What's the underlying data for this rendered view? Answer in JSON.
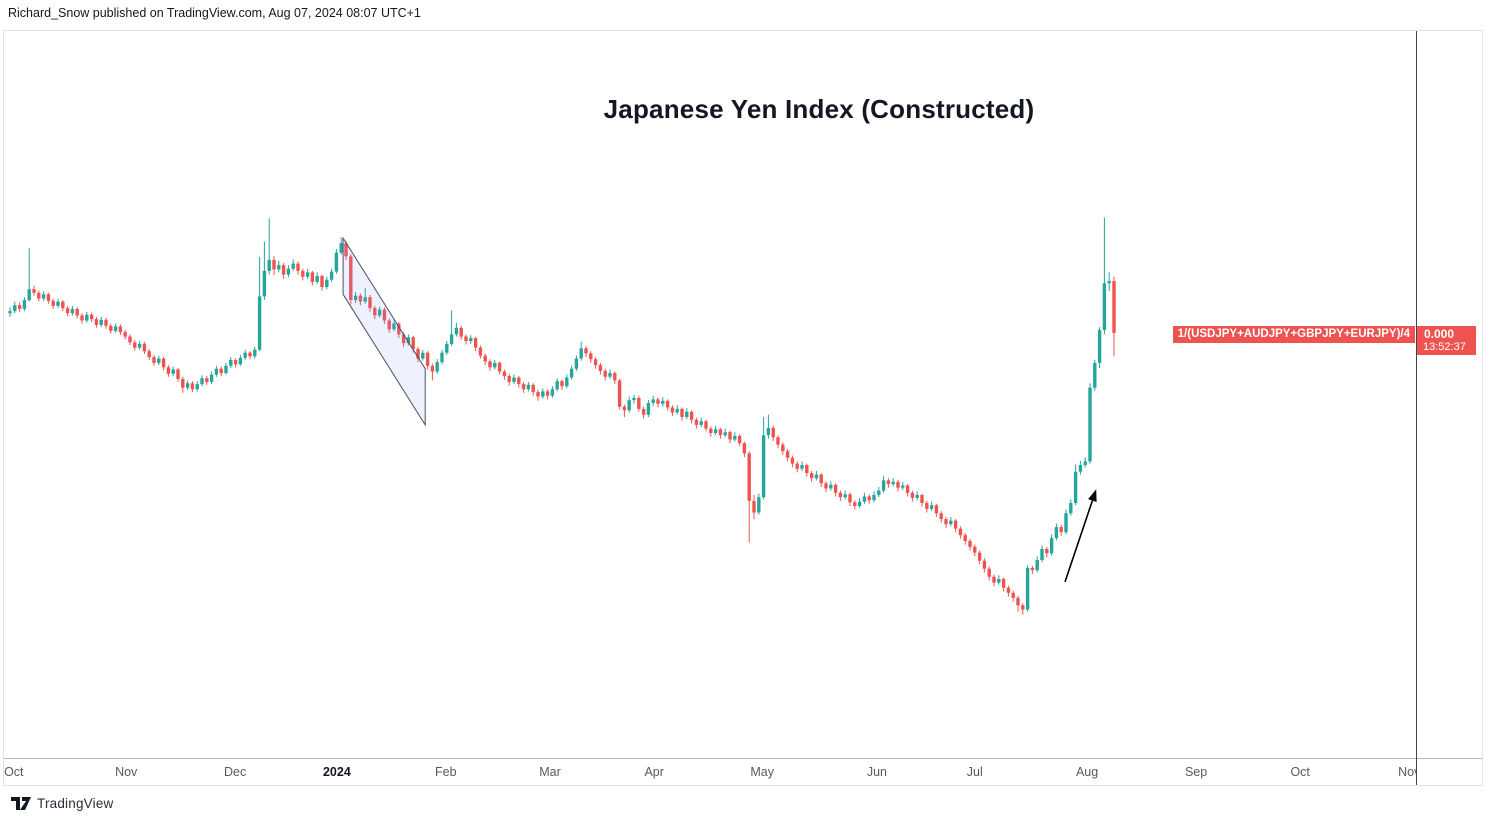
{
  "attribution": "Richard_Snow published on TradingView.com, Aug 07, 2024 08:07 UTC+1",
  "footer": {
    "brand": "TradingView"
  },
  "chart_data": {
    "type": "candlestick",
    "title": "Japanese Yen Index (Constructed)",
    "series_label": "1/(USDJPY+AUDJPY+GBPJPY+EURJPY)/4",
    "last_value": "0.000",
    "countdown": "13:52:37",
    "timeframe": "daily",
    "y_axis": {
      "visible_tick_labels": false,
      "note": "no numeric scale shown on chart; candle levels normalized 0-100 estimated from pixel positions",
      "ylim": [
        0,
        100
      ]
    },
    "x_axis": {
      "labels": [
        {
          "text": "Oct",
          "bar": 0.8
        },
        {
          "text": "Nov",
          "bar": 24.2
        },
        {
          "text": "Dec",
          "bar": 46.9
        },
        {
          "text": "2024",
          "bar": 68.1,
          "bold": true
        },
        {
          "text": "Feb",
          "bar": 90.8
        },
        {
          "text": "Mar",
          "bar": 112.5
        },
        {
          "text": "Apr",
          "bar": 134.2
        },
        {
          "text": "May",
          "bar": 156.7
        },
        {
          "text": "Jun",
          "bar": 180.6
        },
        {
          "text": "Jul",
          "bar": 201.0
        },
        {
          "text": "Aug",
          "bar": 224.4
        },
        {
          "text": "Sep",
          "bar": 247.1
        },
        {
          "text": "Oct",
          "bar": 268.8
        },
        {
          "text": "Nov",
          "bar": 291.5
        }
      ]
    },
    "colors": {
      "up": "#26a69a",
      "down": "#ef5350",
      "label_bg": "#ef5350",
      "channel_fill": "rgba(132,156,248,0.13)",
      "channel_stroke": "#4a5064",
      "arrow": "#000000"
    },
    "candles": [
      [
        61.2,
        62,
        60.7,
        61.5
      ],
      [
        61.5,
        62.8,
        61.2,
        62.3
      ],
      [
        62.3,
        62.7,
        61.4,
        61.8
      ],
      [
        61.8,
        63.4,
        61.5,
        63
      ],
      [
        63,
        70.1,
        62.8,
        64.5
      ],
      [
        64.5,
        65,
        63.6,
        64
      ],
      [
        64,
        64.3,
        62.8,
        63.2
      ],
      [
        63.2,
        64.2,
        62.9,
        63.8
      ],
      [
        63.8,
        64,
        62.5,
        62.9
      ],
      [
        62.9,
        63.2,
        61.8,
        62.2
      ],
      [
        62.2,
        63.2,
        61.9,
        62.8
      ],
      [
        62.8,
        63,
        61.5,
        61.9
      ],
      [
        61.9,
        62.2,
        60.8,
        61.2
      ],
      [
        61.2,
        62.2,
        60.9,
        61.8
      ],
      [
        61.8,
        62,
        60.5,
        60.9
      ],
      [
        60.9,
        61.2,
        59.8,
        60.2
      ],
      [
        60.2,
        61.4,
        59.9,
        61
      ],
      [
        61,
        61.3,
        60,
        60.4
      ],
      [
        60.4,
        60.7,
        59.2,
        59.6
      ],
      [
        59.6,
        60.7,
        59.3,
        60.3
      ],
      [
        60.3,
        60.6,
        59.1,
        59.5
      ],
      [
        59.5,
        59.8,
        58.4,
        58.8
      ],
      [
        58.8,
        59.8,
        58.5,
        59.4
      ],
      [
        59.4,
        59.7,
        58.2,
        58.6
      ],
      [
        58.6,
        58.9,
        57.6,
        58
      ],
      [
        58,
        58.3,
        56.8,
        57.2
      ],
      [
        57.2,
        57.5,
        56.1,
        56.5
      ],
      [
        56.5,
        57.4,
        56.2,
        57
      ],
      [
        57,
        57.3,
        55.6,
        56
      ],
      [
        56,
        56.3,
        54.8,
        55.2
      ],
      [
        55.2,
        55.5,
        54,
        54.4
      ],
      [
        54.4,
        55.4,
        54.1,
        55
      ],
      [
        55,
        55.2,
        53.4,
        53.8
      ],
      [
        53.8,
        54.1,
        52.5,
        52.9
      ],
      [
        52.9,
        53.9,
        52.6,
        53.5
      ],
      [
        53.5,
        53.7,
        51.8,
        52.2
      ],
      [
        52.2,
        52.5,
        50.3,
        51
      ],
      [
        51,
        52,
        50.7,
        51.6
      ],
      [
        51.6,
        51.9,
        50.4,
        50.8
      ],
      [
        50.8,
        51.9,
        50.5,
        51.5
      ],
      [
        51.5,
        52.7,
        51.2,
        52.3
      ],
      [
        52.3,
        52.6,
        51.4,
        51.8
      ],
      [
        51.8,
        53.2,
        51.5,
        52.8
      ],
      [
        52.8,
        54,
        52.5,
        53.6
      ],
      [
        53.6,
        53.9,
        52.6,
        53
      ],
      [
        53,
        54.4,
        52.8,
        54
      ],
      [
        54,
        55.2,
        53.7,
        54.8
      ],
      [
        54.8,
        55,
        53.8,
        54.2
      ],
      [
        54.2,
        55.5,
        54,
        55.1
      ],
      [
        55.1,
        56.2,
        54.8,
        55.8
      ],
      [
        55.8,
        56,
        54.9,
        55.3
      ],
      [
        55.3,
        56.6,
        55,
        56.2
      ],
      [
        56.2,
        68.9,
        56,
        63.5
      ],
      [
        63.5,
        71,
        63,
        67
      ],
      [
        67,
        74.2,
        66.5,
        68.5
      ],
      [
        68.5,
        69,
        66.4,
        67.2
      ],
      [
        67.2,
        68.4,
        66.8,
        67.8
      ],
      [
        67.8,
        68.1,
        65.9,
        66.5
      ],
      [
        66.5,
        67.8,
        66.1,
        67.3
      ],
      [
        67.3,
        68.6,
        67,
        68
      ],
      [
        68,
        68.3,
        66.5,
        67
      ],
      [
        67,
        67.3,
        65.7,
        66.2
      ],
      [
        66.2,
        67.3,
        65.9,
        66.8
      ],
      [
        66.8,
        67,
        65,
        65.5
      ],
      [
        65.5,
        66.8,
        65.2,
        66.3
      ],
      [
        66.3,
        66.5,
        64.3,
        64.8
      ],
      [
        64.8,
        66.2,
        64.5,
        65.8
      ],
      [
        65.8,
        67.3,
        65.5,
        66.9
      ],
      [
        66.9,
        70,
        66.6,
        69.5
      ],
      [
        69.5,
        71.6,
        69.2,
        70.8
      ],
      [
        70.8,
        71.1,
        68.5,
        69
      ],
      [
        69,
        69.3,
        62.4,
        63
      ],
      [
        63,
        64.1,
        62.6,
        63.6
      ],
      [
        63.6,
        63.9,
        62.3,
        62.8
      ],
      [
        62.8,
        64.7,
        62.5,
        63.4
      ],
      [
        63.4,
        63.7,
        61.4,
        61.9
      ],
      [
        61.9,
        62.2,
        60.4,
        60.9
      ],
      [
        60.9,
        62.1,
        60.6,
        61.7
      ],
      [
        61.7,
        62,
        59.7,
        60.2
      ],
      [
        60.2,
        60.5,
        58.5,
        59
      ],
      [
        59,
        60.2,
        58.7,
        59.8
      ],
      [
        59.8,
        60,
        57.8,
        58.3
      ],
      [
        58.3,
        58.6,
        56.6,
        57.1
      ],
      [
        57.1,
        58.3,
        56.8,
        57.9
      ],
      [
        57.9,
        58.1,
        55.8,
        56.3
      ],
      [
        56.3,
        56.6,
        54.5,
        55
      ],
      [
        55,
        56.2,
        54.7,
        55.8
      ],
      [
        55.8,
        56,
        53.5,
        54
      ],
      [
        54,
        54.3,
        52,
        53.2
      ],
      [
        53.2,
        54.9,
        52.9,
        54.5
      ],
      [
        54.5,
        56.2,
        54.2,
        55.8
      ],
      [
        55.8,
        57.4,
        55.5,
        57
      ],
      [
        57,
        61.6,
        56.7,
        58.3
      ],
      [
        58.3,
        59.9,
        58,
        59.2
      ],
      [
        59.2,
        59.5,
        57.6,
        58
      ],
      [
        58,
        58.3,
        56.9,
        57.4
      ],
      [
        57.4,
        58.2,
        57,
        57.8
      ],
      [
        57.8,
        58,
        56,
        56.5
      ],
      [
        56.5,
        56.8,
        55,
        55.4
      ],
      [
        55.4,
        55.7,
        54.1,
        54.6
      ],
      [
        54.6,
        54.9,
        53.3,
        53.8
      ],
      [
        53.8,
        54.8,
        53.5,
        54.4
      ],
      [
        54.4,
        54.6,
        52.8,
        53.2
      ],
      [
        53.2,
        53.5,
        52.1,
        52.6
      ],
      [
        52.6,
        52.9,
        51.3,
        51.8
      ],
      [
        51.8,
        52.8,
        51.5,
        52.4
      ],
      [
        52.4,
        52.6,
        51,
        51.5
      ],
      [
        51.5,
        51.8,
        50.3,
        50.8
      ],
      [
        50.8,
        51.8,
        50.5,
        51.4
      ],
      [
        51.4,
        51.6,
        49.9,
        50.4
      ],
      [
        50.4,
        50.7,
        49.2,
        49.8
      ],
      [
        49.8,
        50.9,
        49.5,
        50.5
      ],
      [
        50.5,
        50.8,
        49.4,
        49.9
      ],
      [
        49.9,
        51.2,
        49.6,
        50.8
      ],
      [
        50.8,
        52.3,
        50.5,
        51.9
      ],
      [
        51.9,
        52.1,
        50.7,
        51.2
      ],
      [
        51.2,
        52.8,
        50.9,
        52.4
      ],
      [
        52.4,
        54,
        52.1,
        53.6
      ],
      [
        53.6,
        55.4,
        53.3,
        55
      ],
      [
        55,
        57.3,
        54.7,
        56.4
      ],
      [
        56.4,
        56.7,
        55.2,
        55.7
      ],
      [
        55.7,
        56,
        54.4,
        54.9
      ],
      [
        54.9,
        55.2,
        53.6,
        54.1
      ],
      [
        54.1,
        54.4,
        52.8,
        53.3
      ],
      [
        53.3,
        53.6,
        52,
        52.5
      ],
      [
        52.5,
        53.5,
        52.2,
        53
      ],
      [
        53,
        53.2,
        51.5,
        52
      ],
      [
        52,
        52.2,
        48,
        48.4
      ],
      [
        48.4,
        48.7,
        47,
        47.9
      ],
      [
        47.9,
        49.8,
        47.6,
        49.3
      ],
      [
        49.3,
        50,
        48.8,
        49.6
      ],
      [
        49.6,
        49.9,
        47.7,
        48.1
      ],
      [
        48.1,
        48.4,
        46.8,
        47.3
      ],
      [
        47.3,
        49.3,
        47,
        48.9
      ],
      [
        48.9,
        49.9,
        48.5,
        49.4
      ],
      [
        49.4,
        49.7,
        48.3,
        48.8
      ],
      [
        48.8,
        49.7,
        48.4,
        49.2
      ],
      [
        49.2,
        49.4,
        47.9,
        48.3
      ],
      [
        48.3,
        48.6,
        47.1,
        47.6
      ],
      [
        47.6,
        48.6,
        47.3,
        48.1
      ],
      [
        48.1,
        48.3,
        46.5,
        47
      ],
      [
        47,
        48.2,
        46.7,
        47.7
      ],
      [
        47.7,
        47.9,
        46.1,
        46.6
      ],
      [
        46.6,
        46.9,
        45.4,
        45.9
      ],
      [
        45.9,
        46.9,
        45.6,
        46.4
      ],
      [
        46.4,
        46.6,
        45,
        45.4
      ],
      [
        45.4,
        45.7,
        44.3,
        44.8
      ],
      [
        44.8,
        45.8,
        44.5,
        45.3
      ],
      [
        45.3,
        45.5,
        44,
        44.5
      ],
      [
        44.5,
        45.4,
        44.2,
        44.9
      ],
      [
        44.9,
        45.1,
        43.4,
        43.9
      ],
      [
        43.9,
        44.9,
        43.6,
        44.4
      ],
      [
        44.4,
        44.6,
        43,
        43.4
      ],
      [
        43.4,
        43.6,
        41.5,
        42
      ],
      [
        42,
        42.3,
        29.8,
        35.5
      ],
      [
        35.5,
        36.3,
        33,
        33.9
      ],
      [
        33.9,
        36.5,
        33.6,
        36
      ],
      [
        36,
        47,
        35.7,
        44.5
      ],
      [
        44.5,
        47.3,
        44,
        45.5
      ],
      [
        45.5,
        45.8,
        43.7,
        44.2
      ],
      [
        44.2,
        44.5,
        42.7,
        43.2
      ],
      [
        43.2,
        43.5,
        41.8,
        42.3
      ],
      [
        42.3,
        42.6,
        40.9,
        41.4
      ],
      [
        41.4,
        41.7,
        40.1,
        40.6
      ],
      [
        40.6,
        40.9,
        39.4,
        39.9
      ],
      [
        39.9,
        40.9,
        39.6,
        40.4
      ],
      [
        40.4,
        40.6,
        38.8,
        39.3
      ],
      [
        39.3,
        39.6,
        38.1,
        38.6
      ],
      [
        38.6,
        39.6,
        38.3,
        39.1
      ],
      [
        39.1,
        39.3,
        37.4,
        37.9
      ],
      [
        37.9,
        38.2,
        36.7,
        37.2
      ],
      [
        37.2,
        38.2,
        36.9,
        37.7
      ],
      [
        37.7,
        37.9,
        36.1,
        36.6
      ],
      [
        36.6,
        36.9,
        35.5,
        36
      ],
      [
        36,
        36.9,
        35.7,
        36.4
      ],
      [
        36.4,
        36.6,
        34.8,
        35.3
      ],
      [
        35.3,
        35.6,
        34.3,
        34.8
      ],
      [
        34.8,
        35.9,
        34.5,
        35.4
      ],
      [
        35.4,
        36.6,
        35.1,
        36.1
      ],
      [
        36.1,
        36.4,
        35.1,
        35.6
      ],
      [
        35.6,
        36.8,
        35.3,
        36.3
      ],
      [
        36.3,
        37.4,
        36,
        36.9
      ],
      [
        36.9,
        38.9,
        36.6,
        38.3
      ],
      [
        38.3,
        38.6,
        37.3,
        37.8
      ],
      [
        37.8,
        38.6,
        37.5,
        38.1
      ],
      [
        38.1,
        38.4,
        36.8,
        37.3
      ],
      [
        37.3,
        38.1,
        37,
        37.6
      ],
      [
        37.6,
        37.8,
        36.1,
        36.6
      ],
      [
        36.6,
        36.9,
        35.4,
        35.9
      ],
      [
        35.9,
        36.8,
        35.6,
        36.3
      ],
      [
        36.3,
        36.5,
        34.7,
        35.2
      ],
      [
        35.2,
        35.5,
        33.9,
        34.4
      ],
      [
        34.4,
        35.4,
        34.1,
        34.9
      ],
      [
        34.9,
        35.1,
        33.3,
        33.8
      ],
      [
        33.8,
        34.1,
        32.5,
        33
      ],
      [
        33,
        33.3,
        31.8,
        32.3
      ],
      [
        32.3,
        33.3,
        32,
        32.8
      ],
      [
        32.8,
        33,
        31.2,
        31.7
      ],
      [
        31.7,
        32,
        30.3,
        30.8
      ],
      [
        30.8,
        31.1,
        29.5,
        30
      ],
      [
        30,
        30.3,
        28.7,
        29.2
      ],
      [
        29.2,
        29.5,
        27.9,
        28.4
      ],
      [
        28.4,
        28.7,
        26.8,
        27.3
      ],
      [
        27.3,
        27.6,
        25.7,
        26.2
      ],
      [
        26.2,
        26.5,
        24.6,
        25.1
      ],
      [
        25.1,
        25.4,
        23.8,
        24.3
      ],
      [
        24.3,
        25.3,
        24,
        24.8
      ],
      [
        24.8,
        25,
        23.1,
        23.6
      ],
      [
        23.6,
        23.9,
        22.4,
        22.9
      ],
      [
        22.9,
        23.2,
        21.7,
        22.2
      ],
      [
        22.2,
        22.5,
        20.3,
        21.2
      ],
      [
        21.2,
        21.5,
        19.9,
        20.6
      ],
      [
        20.6,
        26.7,
        20.3,
        26.3
      ],
      [
        26.3,
        26.6,
        25.5,
        26
      ],
      [
        26,
        27.9,
        25.7,
        27.4
      ],
      [
        27.4,
        29.4,
        27.1,
        28.9
      ],
      [
        28.9,
        29.2,
        27.8,
        28.3
      ],
      [
        28.3,
        30.9,
        28,
        30.4
      ],
      [
        30.4,
        32.4,
        30.1,
        31.9
      ],
      [
        31.9,
        32.2,
        30.7,
        31.2
      ],
      [
        31.2,
        34.3,
        30.9,
        33.8
      ],
      [
        33.8,
        35.7,
        33.5,
        35.2
      ],
      [
        35.2,
        40.5,
        34.9,
        39.5
      ],
      [
        39.5,
        41,
        39.1,
        40.4
      ],
      [
        40.4,
        41.5,
        40.1,
        40.9
      ],
      [
        40.9,
        51.6,
        40.6,
        51
      ],
      [
        51,
        54.8,
        50.6,
        54.4
      ],
      [
        54.4,
        59.3,
        53.7,
        58.9
      ],
      [
        58.9,
        74.3,
        58.3,
        65.3
      ],
      [
        65.3,
        66.8,
        64.2,
        65.6
      ],
      [
        65.6,
        66.2,
        55.3,
        58.5
      ]
    ],
    "drawings": {
      "descending_channel": {
        "from_bar": 69.4,
        "to_bar": 86.5,
        "top_from_level": 71.5,
        "top_to_level": 53.6,
        "depth_levels": 7.7
      },
      "up_arrow": {
        "from_bar": 219.8,
        "from_level": 24.4,
        "to_bar": 226.3,
        "to_level": 37.1
      }
    }
  }
}
